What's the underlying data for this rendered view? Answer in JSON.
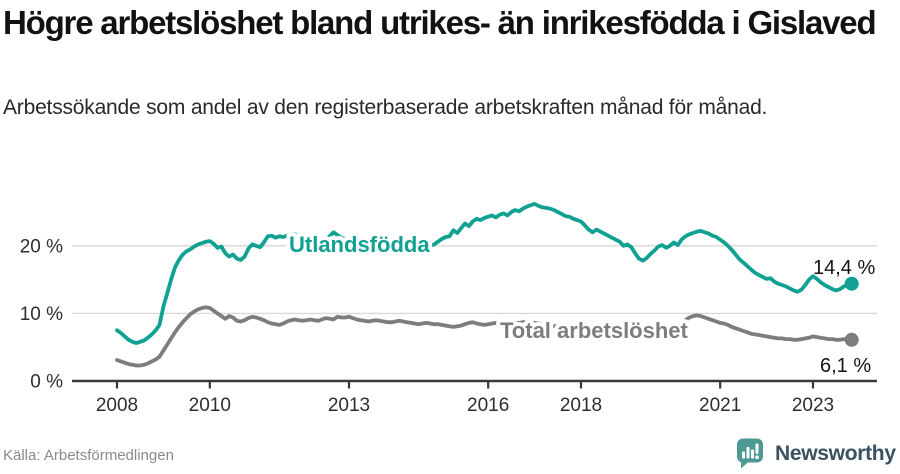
{
  "header": {
    "title": "Högre arbetslöshet bland utrikes- än inrikesfödda i Gislaved",
    "subtitle": "Arbetssökande som andel av den registerbaserade arbetskraften månad för månad."
  },
  "footer": {
    "source": "Källa: Arbetsförmedlingen",
    "brand": "Newsworthy"
  },
  "colors": {
    "series_teal": "#11a192",
    "series_gray": "#7d7d7d",
    "grid": "#d9d9d9",
    "axis": "#3a3a3a",
    "text_dark": "#141414",
    "muted_text": "#8a8a8a",
    "logo_teal": "#4c9a93",
    "brand_text": "#3b5161"
  },
  "chart_data": {
    "type": "line",
    "title": "Högre arbetslöshet bland utrikes- än inrikesfödda i Gislaved",
    "unit": "%",
    "frequency": "monthly",
    "x_start": "2008-01",
    "x_end": "2023-11",
    "xlim": [
      2008,
      2024.2
    ],
    "ylim": [
      0,
      28
    ],
    "grid": "horizontal",
    "legend_position": "inline-on-line",
    "y_ticks": [
      {
        "value": 0,
        "label": "0 %"
      },
      {
        "value": 10,
        "label": "10 %"
      },
      {
        "value": 20,
        "label": "20 %"
      }
    ],
    "x_ticks": [
      {
        "value": 2008,
        "label": "2008"
      },
      {
        "value": 2010,
        "label": "2010"
      },
      {
        "value": 2013,
        "label": "2013"
      },
      {
        "value": 2016,
        "label": "2016"
      },
      {
        "value": 2018,
        "label": "2018"
      },
      {
        "value": 2021,
        "label": "2021"
      },
      {
        "value": 2023,
        "label": "2023"
      }
    ],
    "series": [
      {
        "name": "Utlandsfödda",
        "color": "#11a192",
        "end_label": "14,4 %",
        "last_value": 14.4,
        "values": [
          7.5,
          7.1,
          6.6,
          6.1,
          5.8,
          5.6,
          5.8,
          6.0,
          6.4,
          6.9,
          7.5,
          8.3,
          11.0,
          13.0,
          15.0,
          16.8,
          17.9,
          18.7,
          19.2,
          19.5,
          19.9,
          20.2,
          20.4,
          20.6,
          20.7,
          20.3,
          19.7,
          19.9,
          18.9,
          18.4,
          18.7,
          18.1,
          17.9,
          18.4,
          19.6,
          20.2,
          20.0,
          19.8,
          20.5,
          21.4,
          21.5,
          21.2,
          21.4,
          21.3,
          21.5,
          21.7,
          21.7,
          21.1,
          20.5,
          20.8,
          21.0,
          20.8,
          20.6,
          20.7,
          20.9,
          21.4,
          22.0,
          21.6,
          21.2,
          21.0,
          20.8,
          20.6,
          20.5,
          20.4,
          20.3,
          20.2,
          20.3,
          20.4,
          20.3,
          20.2,
          20.1,
          20.0,
          19.8,
          19.5,
          19.2,
          19.0,
          18.8,
          19.0,
          19.3,
          19.6,
          19.8,
          20.0,
          20.2,
          20.6,
          21.0,
          21.3,
          21.4,
          22.3,
          21.9,
          22.6,
          23.3,
          22.9,
          23.6,
          24.0,
          23.8,
          24.1,
          24.3,
          24.5,
          24.2,
          24.6,
          24.8,
          24.5,
          25.0,
          25.3,
          25.1,
          25.5,
          25.8,
          26.0,
          26.2,
          25.9,
          25.7,
          25.6,
          25.5,
          25.3,
          25.0,
          24.7,
          24.4,
          24.3,
          24.0,
          23.8,
          23.6,
          23.0,
          22.4,
          22.0,
          22.4,
          22.1,
          21.8,
          21.5,
          21.2,
          20.9,
          20.6,
          20.0,
          20.2,
          19.8,
          18.9,
          18.1,
          17.8,
          18.2,
          18.8,
          19.3,
          19.9,
          20.1,
          19.7,
          20.0,
          20.5,
          20.1,
          20.9,
          21.4,
          21.7,
          21.9,
          22.1,
          22.2,
          22.0,
          21.8,
          21.5,
          21.3,
          20.9,
          20.5,
          20.0,
          19.4,
          18.7,
          18.0,
          17.5,
          17.0,
          16.5,
          16.0,
          15.7,
          15.4,
          15.1,
          15.2,
          14.7,
          14.4,
          14.2,
          14.0,
          13.7,
          13.4,
          13.2,
          13.5,
          14.2,
          15.0,
          15.5,
          15.1,
          14.6,
          14.2,
          13.9,
          13.6,
          13.4,
          13.6,
          14.0,
          14.3,
          14.4
        ]
      },
      {
        "name": "Total arbetslöshet",
        "color": "#7d7d7d",
        "end_label": "6,1 %",
        "last_value": 6.1,
        "values": [
          3.1,
          2.9,
          2.7,
          2.5,
          2.4,
          2.3,
          2.3,
          2.4,
          2.6,
          2.9,
          3.2,
          3.6,
          4.5,
          5.4,
          6.3,
          7.2,
          8.0,
          8.7,
          9.3,
          9.9,
          10.3,
          10.6,
          10.8,
          10.9,
          10.8,
          10.4,
          10.0,
          9.6,
          9.2,
          9.6,
          9.4,
          8.9,
          8.8,
          9.0,
          9.3,
          9.5,
          9.4,
          9.2,
          9.0,
          8.7,
          8.5,
          8.4,
          8.3,
          8.5,
          8.8,
          9.0,
          9.1,
          9.0,
          8.9,
          9.0,
          9.1,
          9.0,
          8.9,
          9.1,
          9.3,
          9.2,
          9.1,
          9.5,
          9.4,
          9.4,
          9.5,
          9.3,
          9.1,
          9.0,
          8.9,
          8.8,
          8.9,
          9.0,
          8.9,
          8.8,
          8.7,
          8.7,
          8.8,
          8.9,
          8.8,
          8.7,
          8.6,
          8.5,
          8.4,
          8.5,
          8.6,
          8.5,
          8.4,
          8.4,
          8.3,
          8.2,
          8.1,
          8.0,
          8.1,
          8.2,
          8.4,
          8.6,
          8.7,
          8.5,
          8.4,
          8.3,
          8.4,
          8.5,
          8.6,
          8.8,
          9.0,
          8.9,
          8.7,
          8.6,
          8.6,
          8.7,
          8.8,
          8.7,
          8.6,
          8.5,
          8.4,
          8.3,
          8.2,
          8.1,
          8.1,
          8.2,
          8.1,
          8.0,
          7.9,
          7.9,
          7.9,
          7.8,
          7.7,
          7.6,
          7.7,
          7.6,
          7.5,
          7.4,
          7.4,
          7.3,
          7.3,
          7.4,
          7.5,
          7.4,
          7.2,
          7.1,
          7.0,
          7.1,
          7.3,
          7.4,
          7.5,
          7.6,
          7.6,
          7.7,
          7.8,
          7.9,
          8.3,
          9.0,
          9.4,
          9.6,
          9.7,
          9.6,
          9.4,
          9.2,
          9.0,
          8.8,
          8.6,
          8.5,
          8.3,
          8.0,
          7.8,
          7.6,
          7.4,
          7.2,
          7.0,
          6.9,
          6.8,
          6.7,
          6.6,
          6.5,
          6.4,
          6.3,
          6.3,
          6.2,
          6.2,
          6.1,
          6.1,
          6.2,
          6.3,
          6.4,
          6.6,
          6.5,
          6.4,
          6.3,
          6.2,
          6.2,
          6.1,
          6.1,
          6.2,
          6.2,
          6.1
        ]
      }
    ]
  }
}
